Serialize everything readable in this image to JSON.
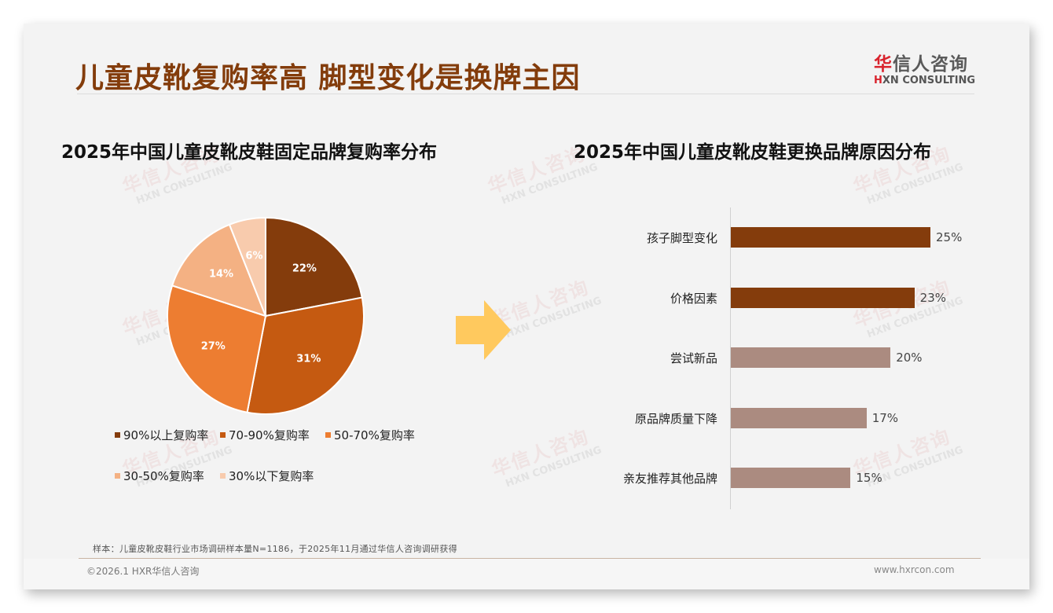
{
  "header": {
    "title": "儿童皮靴复购率高 脚型变化是换牌主因",
    "logo_cn_accent": "华",
    "logo_cn_rest": "信人咨询",
    "logo_en_accent": "H",
    "logo_en_rest": "XN CONSULTING"
  },
  "watermark": {
    "cn": "华信人咨询",
    "en": "HXN CONSULTING"
  },
  "left_chart": {
    "title": "2025年中国儿童皮靴皮鞋固定品牌复购率分布",
    "slices": [
      {
        "label": "90%以上复购率",
        "value": 22,
        "display": "22%",
        "color": "#843c0c"
      },
      {
        "label": "70-90%复购率",
        "value": 31,
        "display": "31%",
        "color": "#c55a11"
      },
      {
        "label": "50-70%复购率",
        "value": 27,
        "display": "27%",
        "color": "#ed7d31"
      },
      {
        "label": "30-50%复购率",
        "value": 14,
        "display": "14%",
        "color": "#f4b183"
      },
      {
        "label": "30%以下复购率",
        "value": 6,
        "display": "6%",
        "color": "#f8cbad"
      }
    ]
  },
  "right_chart": {
    "title": "2025年中国儿童皮靴皮鞋更换品牌原因分布",
    "bars": [
      {
        "label": "孩子脚型变化",
        "value": 25,
        "display": "25%",
        "color": "#843c0c"
      },
      {
        "label": "价格因素",
        "value": 23,
        "display": "23%",
        "color": "#843c0c"
      },
      {
        "label": "尝试新品",
        "value": 20,
        "display": "20%",
        "color": "#ab8b80"
      },
      {
        "label": "原品牌质量下降",
        "value": 17,
        "display": "17%",
        "color": "#ab8b80"
      },
      {
        "label": "亲友推荐其他品牌",
        "value": 15,
        "display": "15%",
        "color": "#ab8b80"
      }
    ]
  },
  "arrow": {
    "color": "#ffc95e",
    "icon": "arrow-right-icon"
  },
  "footer": {
    "note": "样本：儿童皮靴皮鞋行业市场调研样本量N=1186，于2025年11月通过华信人咨询调研获得",
    "copyright": "©2026.1 HXR华信人咨询",
    "website": "www.hxrcon.com"
  },
  "chart_data": [
    {
      "type": "pie",
      "title": "2025年中国儿童皮靴皮鞋固定品牌复购率分布",
      "categories": [
        "90%以上复购率",
        "70-90%复购率",
        "50-70%复购率",
        "30-50%复购率",
        "30%以下复购率"
      ],
      "values": [
        22,
        31,
        27,
        14,
        6
      ],
      "unit": "%",
      "legend_position": "bottom"
    },
    {
      "type": "bar",
      "orientation": "horizontal",
      "title": "2025年中国儿童皮靴皮鞋更换品牌原因分布",
      "categories": [
        "孩子脚型变化",
        "价格因素",
        "尝试新品",
        "原品牌质量下降",
        "亲友推荐其他品牌"
      ],
      "values": [
        25,
        23,
        20,
        17,
        15
      ],
      "unit": "%",
      "xlabel": "",
      "ylabel": "",
      "grid": false
    }
  ]
}
